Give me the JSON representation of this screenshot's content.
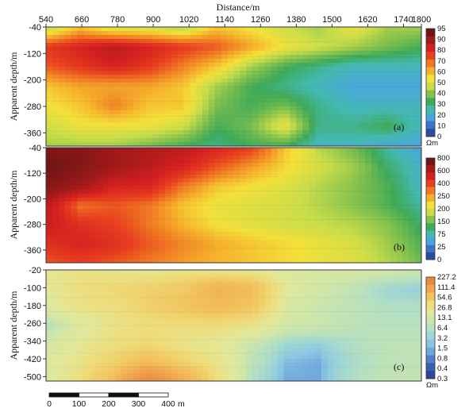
{
  "chart_data": {
    "type": "heatmap",
    "x_axis": {
      "label": "Distance/m",
      "ticks": [
        540,
        660,
        780,
        900,
        1020,
        1140,
        1260,
        1380,
        1500,
        1620,
        1740,
        1800
      ],
      "range": [
        540,
        1800
      ]
    },
    "panels": [
      {
        "label": "(a)",
        "ylabel": "Apparent depth/m",
        "y_ticks": [
          -40,
          -120,
          -200,
          -280,
          -360
        ],
        "y_range": [
          -40,
          -400
        ],
        "colorbar": {
          "unit": "Ωm",
          "ticks": [
            "95",
            "90",
            "80",
            "70",
            "60",
            "50",
            "40",
            "30",
            "20",
            "10",
            "0"
          ],
          "colors": [
            "#6e1515",
            "#a51a1a",
            "#d42020",
            "#e8401f",
            "#f07a23",
            "#f5b02c",
            "#f4e03a",
            "#c9dd4a",
            "#86c24d",
            "#3faa58",
            "#44b9b0",
            "#49a6dc",
            "#3e74c8",
            "#2b4c9e"
          ]
        },
        "values": [
          [
            40,
            55,
            45,
            45,
            40,
            55,
            50,
            45,
            40,
            50,
            40,
            40
          ],
          [
            75,
            80,
            85,
            80,
            75,
            70,
            60,
            50,
            45,
            40,
            35,
            30
          ],
          [
            70,
            75,
            80,
            75,
            65,
            55,
            40,
            30,
            25,
            20,
            20,
            20
          ],
          [
            55,
            60,
            60,
            60,
            55,
            40,
            30,
            25,
            20,
            15,
            15,
            15
          ],
          [
            50,
            55,
            65,
            55,
            55,
            35,
            30,
            35,
            25,
            20,
            20,
            20
          ],
          [
            45,
            50,
            50,
            50,
            45,
            30,
            35,
            50,
            25,
            25,
            30,
            20
          ],
          [
            40,
            40,
            40,
            35,
            30,
            25,
            30,
            30,
            20,
            20,
            15,
            15
          ]
        ]
      },
      {
        "label": "(b)",
        "ylabel": "Apparent depth/m",
        "y_ticks": [
          -40,
          -120,
          -200,
          -280,
          -360
        ],
        "y_range": [
          -40,
          -400
        ],
        "colorbar": {
          "unit": "",
          "ticks": [
            "800",
            "600",
            "400",
            "250",
            "200",
            "150",
            "75",
            "25",
            "0"
          ],
          "colors": [
            "#6e1515",
            "#a51a1a",
            "#d42020",
            "#e8401f",
            "#f07a23",
            "#f5b02c",
            "#f4e03a",
            "#c9dd4a",
            "#86c24d",
            "#3faa58",
            "#44b9b0",
            "#49a6dc",
            "#3e74c8",
            "#2b4c9e"
          ]
        },
        "values": [
          [
            800,
            800,
            700,
            650,
            600,
            500,
            400,
            200,
            120,
            90,
            60,
            40
          ],
          [
            900,
            800,
            700,
            600,
            500,
            350,
            250,
            180,
            140,
            110,
            70,
            50
          ],
          [
            800,
            700,
            500,
            500,
            300,
            200,
            170,
            150,
            120,
            100,
            80,
            50
          ],
          [
            600,
            300,
            350,
            300,
            200,
            160,
            150,
            140,
            120,
            100,
            80,
            60
          ],
          [
            550,
            450,
            400,
            300,
            220,
            170,
            150,
            140,
            130,
            120,
            100,
            70
          ],
          [
            450,
            500,
            450,
            350,
            280,
            230,
            200,
            180,
            160,
            140,
            110,
            80
          ],
          [
            350,
            400,
            350,
            300,
            250,
            220,
            200,
            180,
            160,
            150,
            120,
            90
          ]
        ]
      },
      {
        "label": "(c)",
        "ylabel": "Apparent depth/m",
        "y_ticks": [
          -20,
          -100,
          -180,
          -260,
          -340,
          -420,
          -500
        ],
        "y_range": [
          -20,
          -520
        ],
        "colorbar": {
          "unit": "Ωm",
          "ticks": [
            "227.2",
            "111.4",
            "54.6",
            "26.8",
            "13.1",
            "6.4",
            "3.2",
            "1.5",
            "0.8",
            "0.4",
            "0.3"
          ],
          "colors": [
            "#e98a3b",
            "#f0a450",
            "#f2c25c",
            "#eedc7a",
            "#e2e89a",
            "#cfe6a8",
            "#b6e0c0",
            "#9fd6d4",
            "#8ac6e4",
            "#6fa6dc",
            "#5080c8",
            "#3b5fb0",
            "#2d4896"
          ]
        },
        "values": [
          [
            20,
            25,
            22,
            20,
            25,
            20,
            20,
            15,
            14,
            13,
            12,
            10
          ],
          [
            20,
            30,
            35,
            40,
            45,
            70,
            60,
            20,
            12,
            8,
            4,
            3
          ],
          [
            15,
            25,
            30,
            40,
            50,
            60,
            50,
            15,
            10,
            8,
            6,
            6
          ],
          [
            6,
            15,
            25,
            30,
            30,
            30,
            25,
            12,
            10,
            8,
            7,
            7
          ],
          [
            12,
            20,
            30,
            35,
            25,
            20,
            10,
            4,
            3,
            6,
            8,
            8
          ],
          [
            14,
            25,
            40,
            60,
            40,
            25,
            8,
            2,
            1.5,
            5,
            8,
            8
          ],
          [
            15,
            30,
            60,
            150,
            80,
            30,
            6,
            1.5,
            1.5,
            6,
            9,
            9
          ]
        ]
      }
    ],
    "scale_bar": {
      "ticks": [
        "0",
        "100",
        "200",
        "300",
        "400"
      ],
      "unit": "m"
    }
  }
}
